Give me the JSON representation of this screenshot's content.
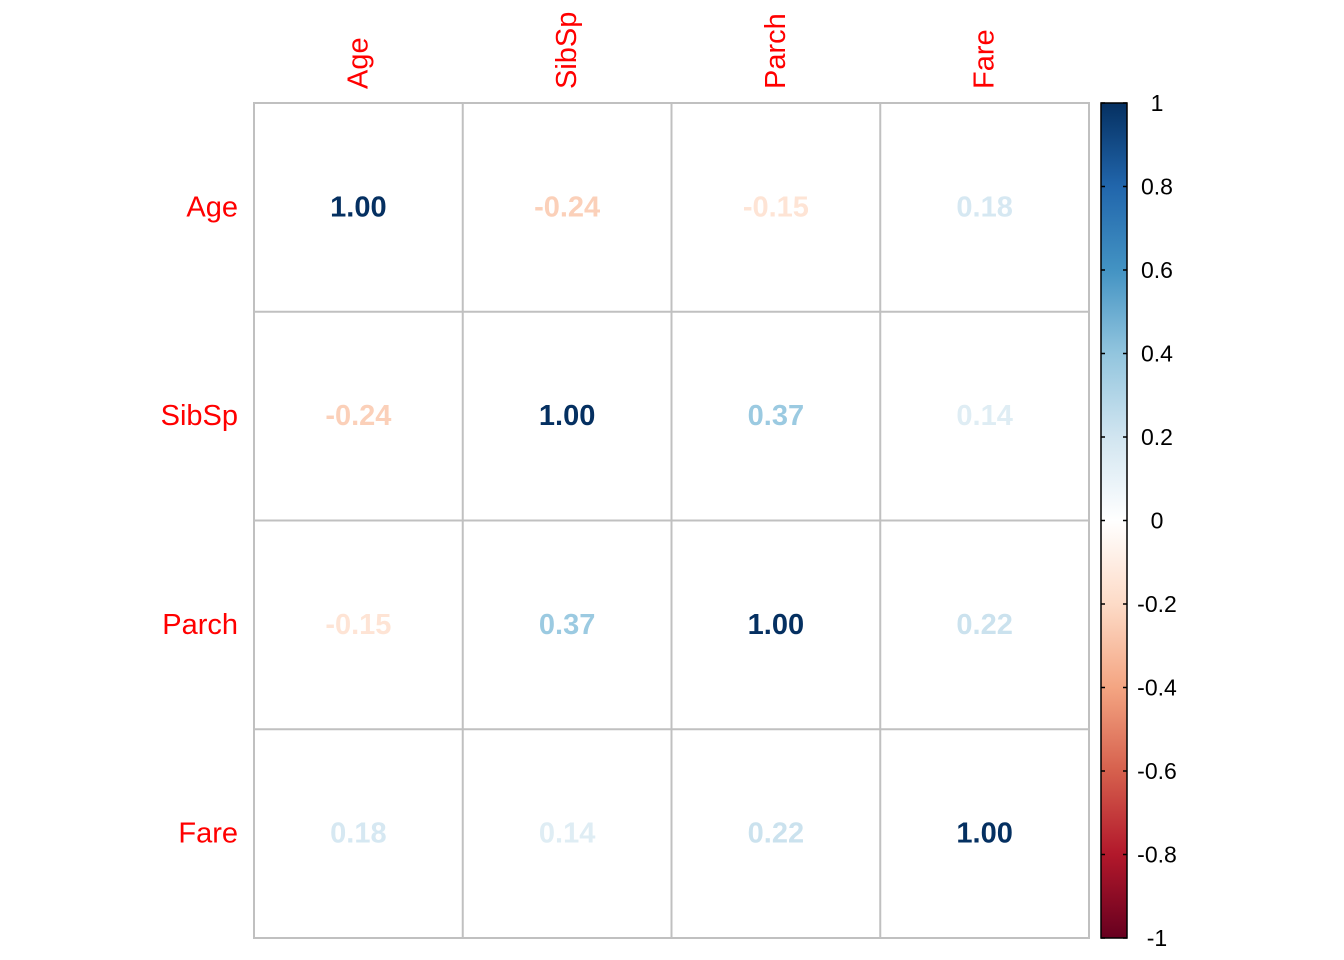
{
  "chart_data": {
    "type": "heatmap",
    "variables": [
      "Age",
      "SibSp",
      "Parch",
      "Fare"
    ],
    "matrix": [
      [
        1.0,
        -0.24,
        -0.15,
        0.18
      ],
      [
        -0.24,
        1.0,
        0.37,
        0.14
      ],
      [
        -0.15,
        0.37,
        1.0,
        0.22
      ],
      [
        0.18,
        0.14,
        0.22,
        1.0
      ]
    ],
    "cell_labels": [
      [
        "1.00",
        "-0.24",
        "-0.15",
        "0.18"
      ],
      [
        "-0.24",
        "1.00",
        "0.37",
        "0.14"
      ],
      [
        "-0.15",
        "0.37",
        "1.00",
        "0.22"
      ],
      [
        "0.18",
        "0.14",
        "0.22",
        "1.00"
      ]
    ],
    "colorbar": {
      "range": [
        -1,
        1
      ],
      "ticks": [
        1,
        0.8,
        0.6,
        0.4,
        0.2,
        0,
        -0.2,
        -0.4,
        -0.6,
        -0.8,
        -1
      ],
      "tick_labels": [
        "1",
        "0.8",
        "0.6",
        "0.4",
        "0.2",
        "0",
        "-0.2",
        "-0.4",
        "-0.6",
        "-0.8",
        "-1"
      ],
      "palette": [
        "#67001F",
        "#B2182B",
        "#D6604D",
        "#F4A582",
        "#FDDBC7",
        "#FFFFFF",
        "#D1E5F0",
        "#92C5DE",
        "#4393C3",
        "#2166AC",
        "#053061"
      ]
    },
    "label_color": "#ff0000",
    "grid_color": "#c0c0c0",
    "grid": true,
    "legend_position": "right"
  }
}
